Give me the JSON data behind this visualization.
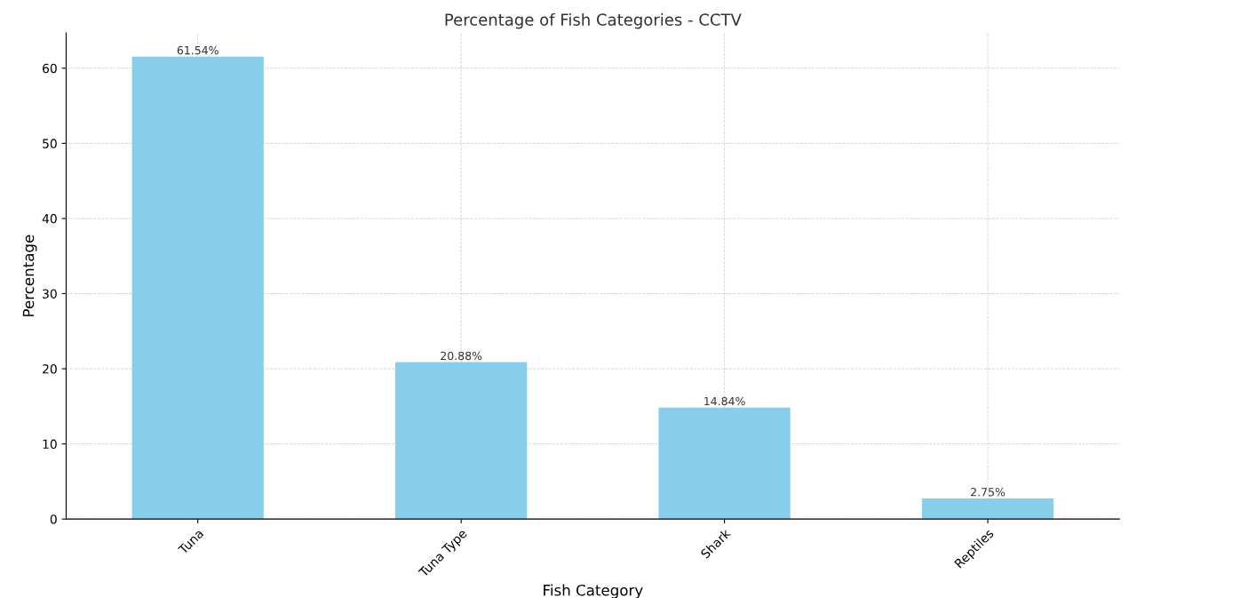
{
  "chart_data": {
    "type": "bar",
    "title": "Percentage of Fish Categories - CCTV",
    "xlabel": "Fish Category",
    "ylabel": "Percentage",
    "categories": [
      "Tuna",
      "Tuna Type",
      "Shark",
      "Reptiles"
    ],
    "values": [
      61.54,
      20.88,
      14.84,
      2.75
    ],
    "value_labels": [
      "61.54%",
      "20.88%",
      "14.84%",
      "2.75%"
    ],
    "color": "#87ceeb",
    "ylim": [
      0,
      64.7
    ],
    "yticks": [
      0,
      10,
      20,
      30,
      40,
      50,
      60
    ],
    "grid": true
  }
}
